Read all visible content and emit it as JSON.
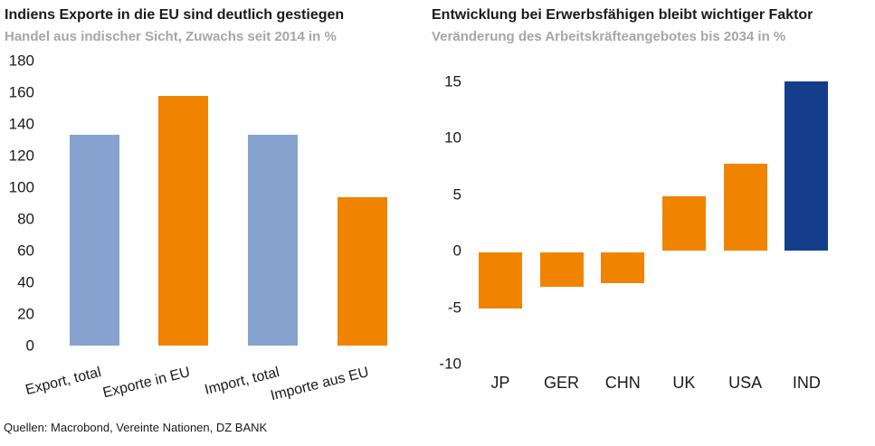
{
  "footer": {
    "sources": "Quellen: Macrobond, Vereinte Nationen, DZ BANK"
  },
  "colors": {
    "accent_orange": "#F08300",
    "accent_light_blue": "#86A2CE",
    "brand_dark_blue": "#143E8C",
    "subtitle_gray": "#A6A6A6",
    "text_black": "#1A1A1A"
  },
  "chart_data": [
    {
      "type": "bar",
      "title": "Indiens Exporte in die EU sind deutlich gestiegen",
      "subtitle": "Handel aus indischer Sicht, Zuwachs seit 2014 in %",
      "categories": [
        "Export, total",
        "Exporte in EU",
        "Import, total",
        "Importe aus EU"
      ],
      "values": [
        133,
        158,
        133,
        94
      ],
      "bar_colors": [
        "#86A2CE",
        "#F08300",
        "#86A2CE",
        "#F08300"
      ],
      "yticks": [
        180,
        160,
        140,
        120,
        100,
        80,
        60,
        40,
        20,
        0
      ],
      "ylim": [
        0,
        180
      ],
      "xlabel": "",
      "ylabel": "",
      "grid": false,
      "legend": false,
      "x_label_style": "rotated-up"
    },
    {
      "type": "bar",
      "title": "Entwicklung bei Erwerbsfähigen bleibt wichtiger Faktor",
      "subtitle": "Veränderung des Arbeitskräfteangebotes bis 2034 in %",
      "categories": [
        "JP",
        "GER",
        "CHN",
        "UK",
        "USA",
        "IND"
      ],
      "values": [
        -5.1,
        -3.2,
        -2.9,
        4.8,
        7.7,
        15
      ],
      "bar_colors": [
        "#F08300",
        "#F08300",
        "#F08300",
        "#F08300",
        "#F08300",
        "#143E8C"
      ],
      "yticks": [
        15,
        10,
        5,
        0,
        -5,
        -10
      ],
      "ylim": [
        -10,
        15
      ],
      "xlabel": "",
      "ylabel": "",
      "grid": false,
      "legend": false,
      "x_label_style": "horizontal"
    }
  ]
}
